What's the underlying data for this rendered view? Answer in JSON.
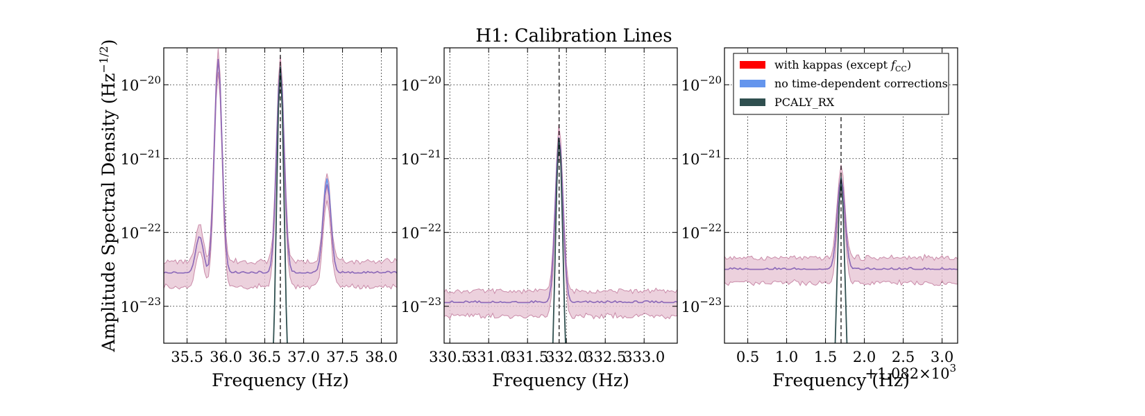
{
  "figure": {
    "title": "H1: Calibration Lines",
    "ylabel": "Amplitude Spectral Density (Hz",
    "ylabel_exp": "−1/2",
    "ylabel_close": ")"
  },
  "legend": {
    "entries": [
      {
        "label": "with kappas (except ",
        "label_math": "f",
        "label_sub": "CC",
        "label_close": ")",
        "color": "#ff0000"
      },
      {
        "label": "no time-dependent corrections",
        "color": "#6495ed"
      },
      {
        "label": "PCALY_RX",
        "color": "#2f4f4f"
      }
    ]
  },
  "colors": {
    "with_kappas": "#ff0000",
    "no_corrections": "#6495ed",
    "pcaly": "#2f4f4f",
    "band_fill": "#e7c6d4",
    "band_edge": "#c98aa8",
    "median_line": "#8a6fc4"
  },
  "chart_data": [
    {
      "type": "line",
      "panel": "left",
      "xlabel": "Frequency (Hz)",
      "xlim": [
        35.2,
        38.2
      ],
      "ylim_exp": [
        -23.5,
        -19.5
      ],
      "log_y": true,
      "grid": true,
      "xticks": [
        35.5,
        36.0,
        36.5,
        37.0,
        37.5,
        38.0
      ],
      "xtick_labels": [
        "35.5",
        "36.0",
        "36.5",
        "37.0",
        "37.5",
        "38.0"
      ],
      "yticks_exp": [
        -20,
        -21,
        -22,
        -23
      ],
      "ytick_labels": [
        "−20",
        "−21",
        "−22",
        "−23"
      ],
      "ytick_base": "10",
      "vline_x": 36.7,
      "series": [
        {
          "name": "with kappas (except fCC)",
          "peaks": [
            [
              35.66,
              -22.05
            ],
            [
              35.9,
              -19.65
            ],
            [
              36.7,
              -19.75
            ],
            [
              37.3,
              -21.35
            ]
          ],
          "floor": -22.55
        },
        {
          "name": "no time-dependent corrections",
          "peaks": [
            [
              35.66,
              -22.05
            ],
            [
              35.9,
              -19.65
            ],
            [
              36.7,
              -19.75
            ],
            [
              37.3,
              -21.27
            ]
          ],
          "floor": -22.55
        },
        {
          "name": "PCALY_RX",
          "peaks": [
            [
              36.7,
              -19.75
            ]
          ],
          "floor": null
        }
      ]
    },
    {
      "type": "line",
      "panel": "middle",
      "xlabel": "Frequency (Hz)",
      "xlim": [
        330.46,
        333.46
      ],
      "ylim_exp": [
        -23.5,
        -19.5
      ],
      "log_y": true,
      "grid": true,
      "xticks": [
        330.5333,
        331.0333,
        331.5333,
        332.0333,
        332.5333,
        333.0333
      ],
      "xtick_labels": [
        "330.5",
        "331.0",
        "331.5",
        "332.0",
        "332.5",
        "333.0"
      ],
      "xtick_labels_rendered": [
        "330.5",
        "331.0",
        "331.5",
        "332.0",
        "332.5",
        "333.0"
      ],
      "xtick_overlap_text": "330.5331.0331.5332.0332.5333.0",
      "yticks_exp": [
        -20,
        -21,
        -22,
        -23
      ],
      "ytick_labels": [
        "−20",
        "−21",
        "−22",
        "−23"
      ],
      "ytick_base": "10",
      "vline_x": 331.94,
      "series": [
        {
          "name": "with kappas (except fCC)",
          "peaks": [
            [
              331.94,
              -20.7
            ]
          ],
          "floor": -22.95
        },
        {
          "name": "no time-dependent corrections",
          "peaks": [
            [
              331.94,
              -20.7
            ]
          ],
          "floor": -22.95
        },
        {
          "name": "PCALY_RX",
          "peaks": [
            [
              331.94,
              -20.7
            ]
          ],
          "floor": null
        }
      ]
    },
    {
      "type": "line",
      "panel": "right",
      "xlabel": "Frequency (Hz)",
      "xlim": [
        0.2,
        3.2
      ],
      "x_offset_text": "+1.082×10",
      "x_offset_exp": "3",
      "ylim_exp": [
        -23.5,
        -19.5
      ],
      "log_y": true,
      "grid": true,
      "xticks": [
        0.5,
        1.0,
        1.5,
        2.0,
        2.5,
        3.0
      ],
      "xtick_labels": [
        "0.5",
        "1.0",
        "1.5",
        "2.0",
        "2.5",
        "3.0"
      ],
      "yticks_exp": [
        -20,
        -21,
        -22,
        -23
      ],
      "ytick_labels": [
        "−20",
        "−21",
        "−22",
        "−23"
      ],
      "ytick_base": "10",
      "vline_x": 1.7,
      "series": [
        {
          "name": "with kappas (except fCC)",
          "peaks": [
            [
              1.7,
              -21.25
            ]
          ],
          "floor": -22.5
        },
        {
          "name": "no time-dependent corrections",
          "peaks": [
            [
              1.7,
              -21.25
            ]
          ],
          "floor": -22.5
        },
        {
          "name": "PCALY_RX",
          "peaks": [
            [
              1.7,
              -21.25
            ]
          ],
          "floor": null
        }
      ]
    }
  ]
}
